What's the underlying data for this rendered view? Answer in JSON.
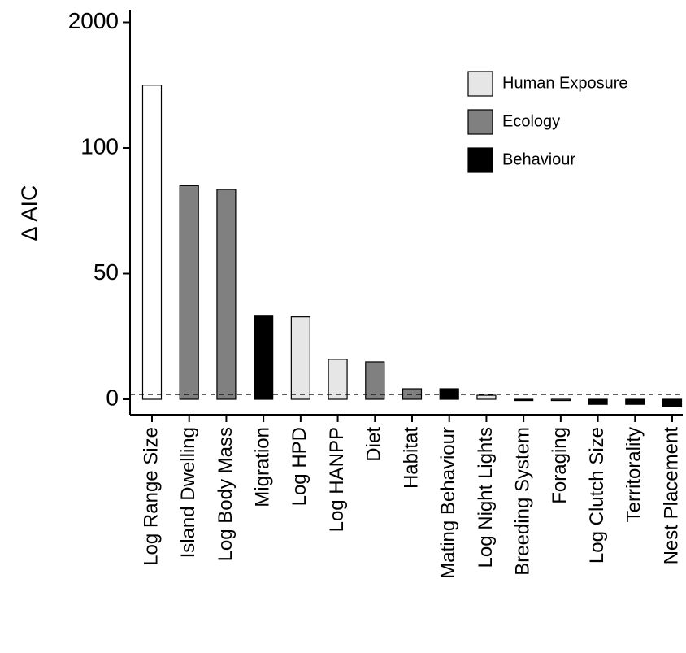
{
  "chart_data": {
    "type": "bar",
    "y_label": "Δ AIC",
    "categories": [
      "Log Range Size",
      "Island Dwelling",
      "Log Body Mass",
      "Migration",
      "Log HPD",
      "Log HANPP",
      "Diet",
      "Habitat",
      "Mating Behaviour",
      "Log Night Lights",
      "Breeding System",
      "Foraging",
      "Log Clutch Size",
      "Territorality",
      "Nest Placement"
    ],
    "values": [
      1050,
      85,
      83.5,
      33.4,
      32.8,
      15.9,
      14.9,
      4.2,
      4.2,
      1.6,
      -0.5,
      -0.5,
      -2,
      -2,
      -3
    ],
    "colors": [
      "#ffffff",
      "#808080",
      "#808080",
      "#000000",
      "#e6e6e6",
      "#e6e6e6",
      "#808080",
      "#808080",
      "#000000",
      "#e6e6e6",
      "#000000",
      "#808080",
      "#000000",
      "#000000",
      "#000000"
    ],
    "legend": [
      {
        "name": "Human Exposure",
        "color": "#e6e6e6"
      },
      {
        "name": "Ecology",
        "color": "#808080"
      },
      {
        "name": "Behaviour",
        "color": "#000000"
      }
    ],
    "ylim": [
      -6,
      2300
    ],
    "yticks": [
      0,
      50,
      100,
      2000
    ],
    "y_scale": "piecewise",
    "reference_line": 2,
    "legend_position": "upper right"
  }
}
